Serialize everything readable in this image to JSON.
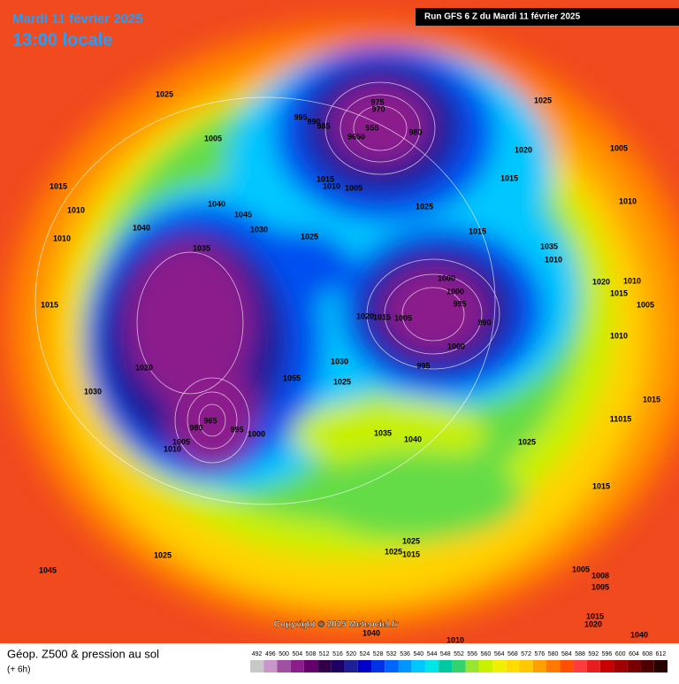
{
  "header": {
    "date": "Mardi 11 février 2025",
    "time": "13:00 locale",
    "run": "Run GFS 6 Z du Mardi 11 février 2025"
  },
  "map": {
    "copyright": "Copyright © 2025 Meteociel.fr",
    "pressure_labels": [
      "1025",
      "1005",
      "1015",
      "1010",
      "1010",
      "1040",
      "1045",
      "1030",
      "1040",
      "1035",
      "1025",
      "995",
      "990",
      "985",
      "975",
      "970",
      "955",
      "9650",
      "980",
      "1015",
      "1005",
      "1010",
      "1025",
      "1035",
      "1000",
      "1000",
      "995",
      "990",
      "1000",
      "995",
      "1005",
      "1015",
      "1020",
      "1030",
      "1025",
      "1055",
      "965",
      "980",
      "1005",
      "1010",
      "995",
      "1000",
      "1020",
      "1030",
      "1015",
      "1035",
      "1040",
      "1025",
      "1015",
      "1015",
      "1025",
      "1025",
      "1025",
      "1015",
      "1025",
      "1020",
      "1005",
      "1010",
      "1005",
      "1008",
      "1005",
      "1015",
      "1020",
      "1040",
      "1045",
      "1040",
      "1010",
      "1010",
      "1020",
      "1015",
      "1010",
      "1005",
      "1010",
      "1015",
      "11015",
      "1015"
    ]
  },
  "legend": {
    "title": "Géop. Z500 & pression au sol",
    "subtitle": "(+ 6h)",
    "ticks": [
      492,
      496,
      500,
      504,
      508,
      512,
      516,
      520,
      524,
      528,
      532,
      536,
      540,
      544,
      548,
      552,
      556,
      560,
      564,
      568,
      572,
      576,
      580,
      584,
      588,
      592,
      596,
      600,
      604,
      608,
      612
    ],
    "colors": [
      "#c8c8c8",
      "#c896c8",
      "#a050a0",
      "#8c1e8c",
      "#64006e",
      "#320046",
      "#1e0064",
      "#1e1e96",
      "#0000c8",
      "#0032e6",
      "#0064ff",
      "#0096ff",
      "#00c8ff",
      "#00e6e6",
      "#00c8a0",
      "#32d26e",
      "#96e632",
      "#c8f000",
      "#f0f000",
      "#ffdc00",
      "#ffc800",
      "#ffa000",
      "#ff7800",
      "#ff5000",
      "#ff3c3c",
      "#e61e1e",
      "#c80000",
      "#a00000",
      "#780000",
      "#500000",
      "#280000"
    ]
  }
}
